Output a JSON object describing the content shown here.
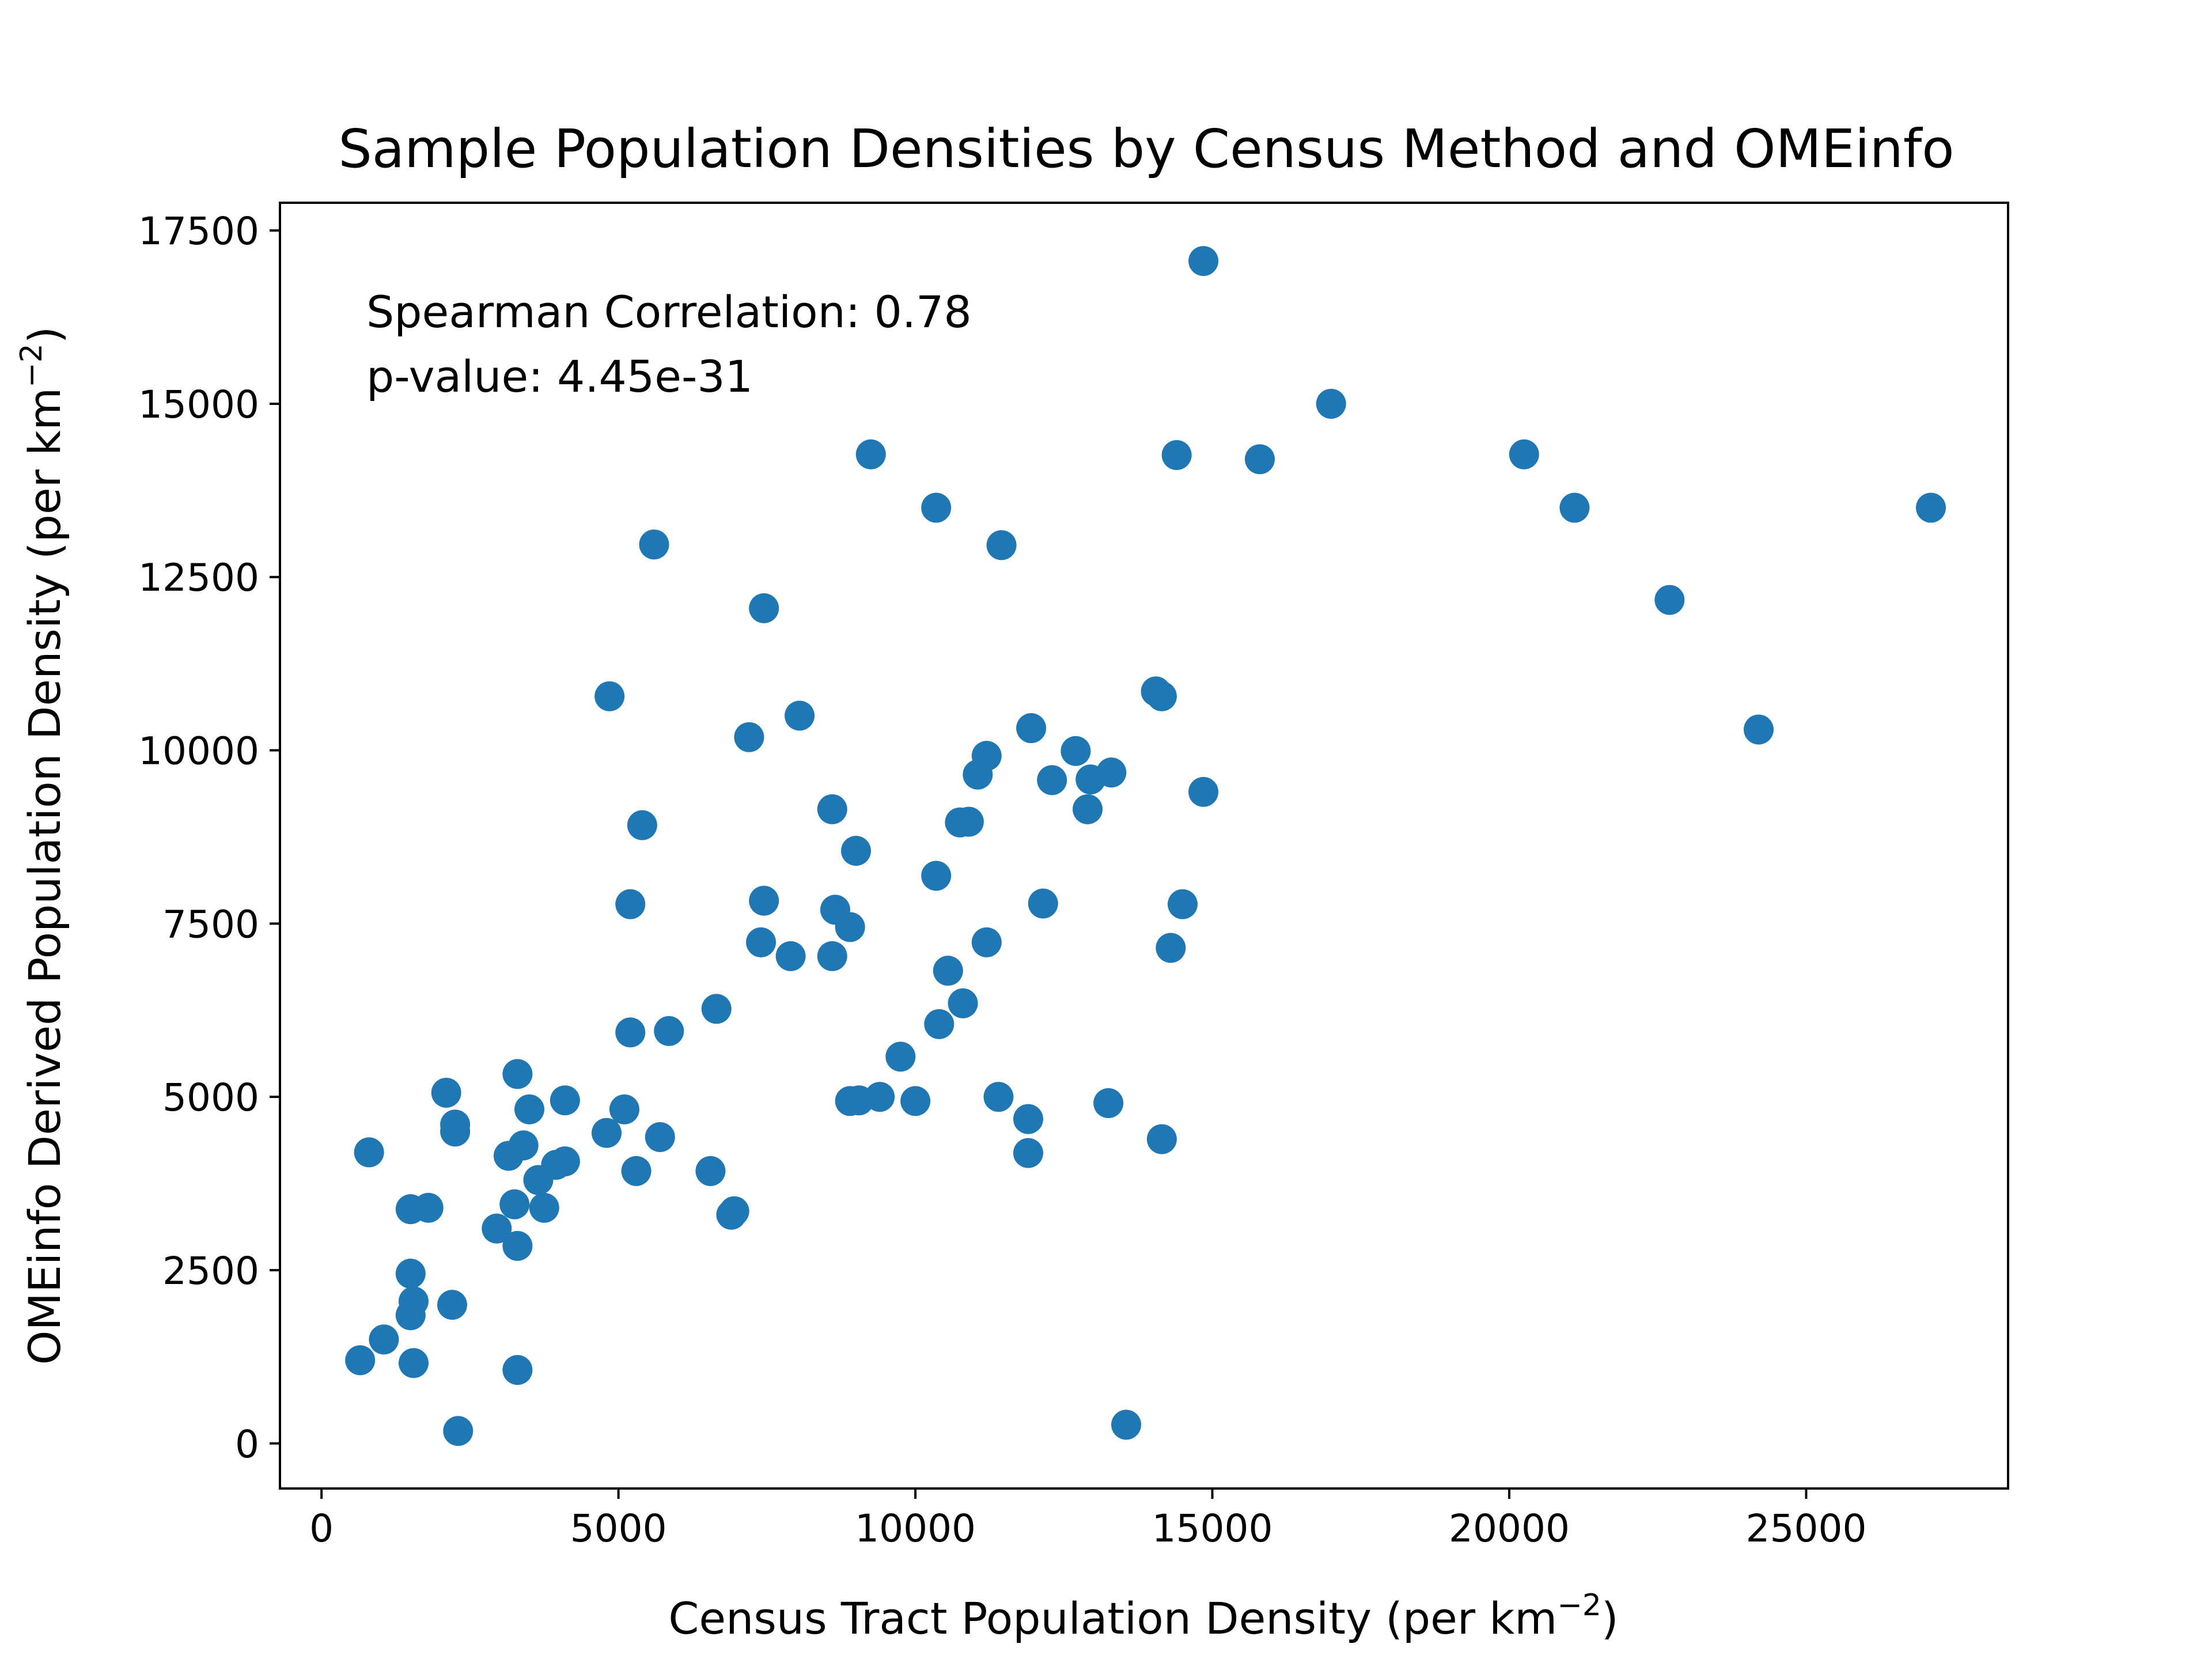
{
  "chart_data": {
    "type": "scatter",
    "title": "Sample Population Densities by Census Method and OMEinfo",
    "xlabel": {
      "prefix": "Census Tract Population Density (per km",
      "sup": "−2",
      "suffix": ")"
    },
    "ylabel": {
      "prefix": "OMEinfo Derived Population Density (per km",
      "sup": "−2",
      "suffix": ")"
    },
    "xlim": [
      -700,
      28400
    ],
    "ylim": [
      -650,
      17900
    ],
    "xticks": [
      0,
      5000,
      10000,
      15000,
      20000,
      25000
    ],
    "yticks": [
      0,
      2500,
      5000,
      7500,
      10000,
      12500,
      15000,
      17500
    ],
    "grid": false,
    "marker_color": "#1f77b4",
    "annotation": {
      "line1": "Spearman Correlation: 0.78",
      "line2": "p-value: 4.45e-31"
    },
    "points": [
      [
        650,
        1200
      ],
      [
        800,
        4200
      ],
      [
        1050,
        1500
      ],
      [
        1500,
        3380
      ],
      [
        1500,
        1850
      ],
      [
        1500,
        2450
      ],
      [
        1550,
        1160
      ],
      [
        1550,
        2050
      ],
      [
        1800,
        3400
      ],
      [
        2100,
        5060
      ],
      [
        2200,
        2000
      ],
      [
        2250,
        4600
      ],
      [
        2250,
        4500
      ],
      [
        2300,
        180
      ],
      [
        2950,
        3100
      ],
      [
        3150,
        4150
      ],
      [
        3250,
        3450
      ],
      [
        3300,
        5330
      ],
      [
        3300,
        1060
      ],
      [
        3300,
        2850
      ],
      [
        3400,
        4300
      ],
      [
        3500,
        4820
      ],
      [
        3650,
        3800
      ],
      [
        3750,
        3400
      ],
      [
        3950,
        4020
      ],
      [
        4100,
        4070
      ],
      [
        4100,
        4950
      ],
      [
        4800,
        4480
      ],
      [
        4850,
        10780
      ],
      [
        5100,
        4820
      ],
      [
        5200,
        7780
      ],
      [
        5200,
        5930
      ],
      [
        5300,
        3930
      ],
      [
        5400,
        8920
      ],
      [
        5600,
        12970
      ],
      [
        5700,
        4420
      ],
      [
        5850,
        5950
      ],
      [
        6550,
        3930
      ],
      [
        6650,
        6270
      ],
      [
        6900,
        3300
      ],
      [
        6950,
        3350
      ],
      [
        7200,
        10190
      ],
      [
        7400,
        7230
      ],
      [
        7450,
        7830
      ],
      [
        7450,
        12050
      ],
      [
        7900,
        7030
      ],
      [
        8050,
        10500
      ],
      [
        8600,
        7030
      ],
      [
        8600,
        9150
      ],
      [
        8650,
        7700
      ],
      [
        8900,
        4940
      ],
      [
        8900,
        7450
      ],
      [
        9000,
        8550
      ],
      [
        9050,
        4950
      ],
      [
        9250,
        14270
      ],
      [
        9400,
        5000
      ],
      [
        9750,
        5580
      ],
      [
        10000,
        4940
      ],
      [
        10350,
        13500
      ],
      [
        10350,
        8190
      ],
      [
        10400,
        6050
      ],
      [
        10550,
        6820
      ],
      [
        10750,
        8960
      ],
      [
        10800,
        6350
      ],
      [
        10900,
        8970
      ],
      [
        11050,
        9650
      ],
      [
        11200,
        7230
      ],
      [
        11200,
        9920
      ],
      [
        11400,
        5000
      ],
      [
        11450,
        12960
      ],
      [
        11900,
        4680
      ],
      [
        11900,
        4190
      ],
      [
        11950,
        10320
      ],
      [
        12150,
        7790
      ],
      [
        12300,
        9570
      ],
      [
        12700,
        9990
      ],
      [
        12900,
        9150
      ],
      [
        12950,
        9580
      ],
      [
        13250,
        4910
      ],
      [
        13300,
        9680
      ],
      [
        13550,
        270
      ],
      [
        14050,
        10850
      ],
      [
        14150,
        4390
      ],
      [
        14150,
        10780
      ],
      [
        14300,
        7150
      ],
      [
        14400,
        14260
      ],
      [
        14500,
        7780
      ],
      [
        14850,
        17060
      ],
      [
        14850,
        9400
      ],
      [
        15800,
        14200
      ],
      [
        17000,
        15000
      ],
      [
        20250,
        14270
      ],
      [
        21100,
        13500
      ],
      [
        22700,
        12170
      ],
      [
        24200,
        10300
      ],
      [
        27100,
        13500
      ]
    ]
  }
}
